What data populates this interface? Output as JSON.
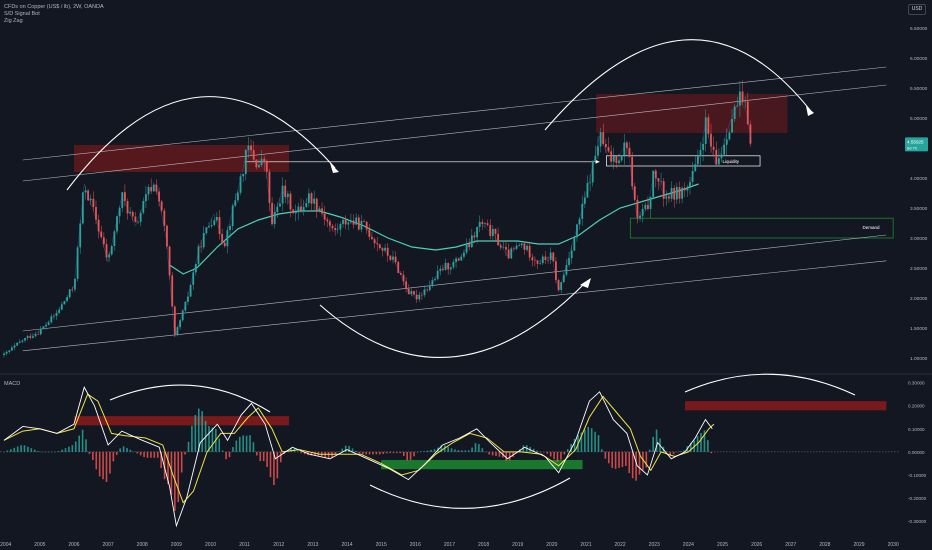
{
  "header": {
    "symbol_line": "CFDs on Copper (US$ / lb), 2W, OANDA",
    "indicator_1": "S/D Signal Bot",
    "indicator_2": "Zig Zag",
    "currency": "USD"
  },
  "macd_title": "MACD",
  "colors": {
    "background": "#131722",
    "up_candle": "#26a69a",
    "down_candle": "#ef5350",
    "sma": "#4dd0b6",
    "macd_line": "#ffffff",
    "signal_line": "#f0e442",
    "supply_zone": "#8b1a1a",
    "demand_zone": "#1b8a2e",
    "annotation": "#ffffff",
    "price_label": "#26a69a"
  },
  "chart_data": [
    {
      "type": "candlestick",
      "title": "CFDs on Copper (US$ / lb), 2W, OANDA",
      "x_axis_ticks": [
        "2004",
        "2005",
        "2006",
        "2007",
        "2008",
        "2009",
        "2010",
        "2011",
        "2012",
        "2013",
        "2014",
        "2015",
        "2016",
        "2017",
        "2018",
        "2019",
        "2020",
        "2021",
        "2022",
        "2023",
        "2024",
        "2025",
        "2026",
        "2027",
        "2028",
        "2029",
        "2030"
      ],
      "y_axis_ticks": [
        "6.50000",
        "6.00000",
        "5.50000",
        "5.00000",
        "4.50000",
        "4.00000",
        "3.50000",
        "3.00000",
        "2.50000",
        "2.00000",
        "1.50000",
        "1.00000"
      ],
      "ylim": [
        0.8,
        6.8
      ],
      "xlim": [
        2003.95,
        2030.2
      ],
      "last_price": {
        "value": "4.55925",
        "sub": "6d 7h"
      },
      "price_path": [
        [
          2003.95,
          1.05
        ],
        [
          2004.5,
          1.3
        ],
        [
          2005.0,
          1.45
        ],
        [
          2005.5,
          1.75
        ],
        [
          2006.0,
          2.2
        ],
        [
          2006.3,
          3.9
        ],
        [
          2006.6,
          3.4
        ],
        [
          2007.0,
          2.6
        ],
        [
          2007.4,
          3.7
        ],
        [
          2007.8,
          3.2
        ],
        [
          2008.2,
          3.8
        ],
        [
          2008.4,
          3.9
        ],
        [
          2008.7,
          3.0
        ],
        [
          2008.95,
          1.35
        ],
        [
          2009.3,
          1.95
        ],
        [
          2009.7,
          2.9
        ],
        [
          2010.1,
          3.4
        ],
        [
          2010.4,
          2.9
        ],
        [
          2010.8,
          3.8
        ],
        [
          2011.1,
          4.5
        ],
        [
          2011.4,
          4.2
        ],
        [
          2011.6,
          4.3
        ],
        [
          2011.8,
          3.2
        ],
        [
          2012.1,
          3.8
        ],
        [
          2012.5,
          3.4
        ],
        [
          2012.9,
          3.7
        ],
        [
          2013.2,
          3.5
        ],
        [
          2013.6,
          3.1
        ],
        [
          2014.0,
          3.3
        ],
        [
          2014.5,
          3.2
        ],
        [
          2014.9,
          2.9
        ],
        [
          2015.4,
          2.6
        ],
        [
          2015.8,
          2.1
        ],
        [
          2016.0,
          2.0
        ],
        [
          2016.4,
          2.2
        ],
        [
          2016.8,
          2.5
        ],
        [
          2017.2,
          2.6
        ],
        [
          2017.6,
          2.9
        ],
        [
          2017.9,
          3.25
        ],
        [
          2018.3,
          3.05
        ],
        [
          2018.7,
          2.7
        ],
        [
          2019.1,
          2.9
        ],
        [
          2019.6,
          2.6
        ],
        [
          2020.0,
          2.7
        ],
        [
          2020.2,
          2.1
        ],
        [
          2020.6,
          2.9
        ],
        [
          2020.9,
          3.5
        ],
        [
          2021.2,
          4.2
        ],
        [
          2021.4,
          4.7
        ],
        [
          2021.7,
          4.3
        ],
        [
          2022.0,
          4.4
        ],
        [
          2022.2,
          4.6
        ],
        [
          2022.5,
          3.3
        ],
        [
          2022.8,
          3.5
        ],
        [
          2023.0,
          4.1
        ],
        [
          2023.3,
          3.7
        ],
        [
          2023.7,
          3.75
        ],
        [
          2024.0,
          3.85
        ],
        [
          2024.3,
          4.3
        ],
        [
          2024.5,
          4.9
        ],
        [
          2024.8,
          4.2
        ],
        [
          2025.0,
          4.5
        ],
        [
          2025.2,
          4.9
        ],
        [
          2025.5,
          5.3
        ],
        [
          2025.7,
          5.1
        ],
        [
          2025.85,
          4.6
        ]
      ],
      "sma_path": [
        [
          2008.8,
          2.55
        ],
        [
          2009.2,
          2.4
        ],
        [
          2009.6,
          2.5
        ],
        [
          2010.2,
          2.85
        ],
        [
          2010.8,
          3.15
        ],
        [
          2011.4,
          3.3
        ],
        [
          2012.0,
          3.4
        ],
        [
          2012.6,
          3.45
        ],
        [
          2013.2,
          3.45
        ],
        [
          2013.8,
          3.35
        ],
        [
          2014.5,
          3.2
        ],
        [
          2015.2,
          3.0
        ],
        [
          2015.9,
          2.85
        ],
        [
          2016.6,
          2.8
        ],
        [
          2017.2,
          2.85
        ],
        [
          2017.8,
          2.95
        ],
        [
          2018.4,
          2.95
        ],
        [
          2019.0,
          2.95
        ],
        [
          2019.6,
          2.9
        ],
        [
          2020.2,
          2.9
        ],
        [
          2020.8,
          3.05
        ],
        [
          2021.4,
          3.3
        ],
        [
          2022.0,
          3.5
        ],
        [
          2022.6,
          3.6
        ],
        [
          2023.2,
          3.7
        ],
        [
          2023.8,
          3.8
        ],
        [
          2024.3,
          3.9
        ]
      ],
      "labels": {
        "liquidity": "Liquidity",
        "demand": "Demand"
      }
    },
    {
      "type": "bar",
      "title": "MACD",
      "y_axis_ticks": [
        "0.30000",
        "0.20000",
        "0.10000",
        "0.00000",
        "-0.10000",
        "-0.20000",
        "-0.30000"
      ],
      "ylim": [
        -0.36,
        0.32
      ],
      "macd_path": [
        [
          2003.95,
          0.05
        ],
        [
          2004.5,
          0.11
        ],
        [
          2005.0,
          0.1
        ],
        [
          2005.5,
          0.08
        ],
        [
          2006.0,
          0.12
        ],
        [
          2006.3,
          0.28
        ],
        [
          2006.6,
          0.2
        ],
        [
          2007.0,
          0.03
        ],
        [
          2007.4,
          0.09
        ],
        [
          2008.0,
          0.05
        ],
        [
          2008.5,
          0.02
        ],
        [
          2008.8,
          -0.15
        ],
        [
          2009.0,
          -0.32
        ],
        [
          2009.3,
          -0.2
        ],
        [
          2009.7,
          0.04
        ],
        [
          2010.2,
          0.12
        ],
        [
          2010.5,
          0.05
        ],
        [
          2010.9,
          0.16
        ],
        [
          2011.2,
          0.21
        ],
        [
          2011.6,
          0.12
        ],
        [
          2011.9,
          -0.03
        ],
        [
          2012.4,
          0.02
        ],
        [
          2012.9,
          -0.01
        ],
        [
          2013.5,
          -0.03
        ],
        [
          2014.0,
          0.01
        ],
        [
          2014.6,
          -0.03
        ],
        [
          2015.2,
          -0.07
        ],
        [
          2015.8,
          -0.12
        ],
        [
          2016.3,
          -0.05
        ],
        [
          2016.8,
          0.03
        ],
        [
          2017.3,
          0.06
        ],
        [
          2017.8,
          0.1
        ],
        [
          2018.2,
          0.04
        ],
        [
          2018.7,
          -0.03
        ],
        [
          2019.2,
          0.02
        ],
        [
          2019.8,
          -0.02
        ],
        [
          2020.2,
          -0.09
        ],
        [
          2020.7,
          0.05
        ],
        [
          2021.1,
          0.22
        ],
        [
          2021.4,
          0.26
        ],
        [
          2021.8,
          0.14
        ],
        [
          2022.2,
          0.08
        ],
        [
          2022.5,
          -0.06
        ],
        [
          2022.8,
          -0.1
        ],
        [
          2023.1,
          0.04
        ],
        [
          2023.5,
          -0.03
        ],
        [
          2023.9,
          0.0
        ],
        [
          2024.2,
          0.06
        ],
        [
          2024.5,
          0.14
        ],
        [
          2024.7,
          0.1
        ]
      ],
      "signal_path": [
        [
          2003.95,
          0.05
        ],
        [
          2004.5,
          0.09
        ],
        [
          2005.0,
          0.1
        ],
        [
          2005.5,
          0.08
        ],
        [
          2006.0,
          0.1
        ],
        [
          2006.4,
          0.25
        ],
        [
          2006.7,
          0.22
        ],
        [
          2007.1,
          0.08
        ],
        [
          2007.5,
          0.07
        ],
        [
          2008.1,
          0.06
        ],
        [
          2008.6,
          0.03
        ],
        [
          2008.9,
          -0.1
        ],
        [
          2009.2,
          -0.22
        ],
        [
          2009.5,
          -0.17
        ],
        [
          2009.9,
          0.0
        ],
        [
          2010.3,
          0.08
        ],
        [
          2010.7,
          0.08
        ],
        [
          2011.1,
          0.15
        ],
        [
          2011.4,
          0.19
        ],
        [
          2011.8,
          0.1
        ],
        [
          2012.1,
          0.0
        ],
        [
          2012.6,
          0.01
        ],
        [
          2013.2,
          -0.01
        ],
        [
          2013.8,
          -0.01
        ],
        [
          2014.4,
          -0.01
        ],
        [
          2015.0,
          -0.05
        ],
        [
          2015.6,
          -0.1
        ],
        [
          2016.1,
          -0.08
        ],
        [
          2016.6,
          -0.01
        ],
        [
          2017.1,
          0.04
        ],
        [
          2017.6,
          0.08
        ],
        [
          2018.1,
          0.06
        ],
        [
          2018.6,
          0.0
        ],
        [
          2019.1,
          0.0
        ],
        [
          2019.7,
          -0.01
        ],
        [
          2020.2,
          -0.06
        ],
        [
          2020.7,
          0.01
        ],
        [
          2021.1,
          0.15
        ],
        [
          2021.5,
          0.24
        ],
        [
          2021.9,
          0.17
        ],
        [
          2022.3,
          0.1
        ],
        [
          2022.6,
          -0.02
        ],
        [
          2022.9,
          -0.08
        ],
        [
          2023.2,
          0.0
        ],
        [
          2023.6,
          -0.02
        ],
        [
          2024.0,
          0.0
        ],
        [
          2024.3,
          0.04
        ],
        [
          2024.6,
          0.1
        ],
        [
          2024.75,
          0.12
        ]
      ]
    }
  ]
}
